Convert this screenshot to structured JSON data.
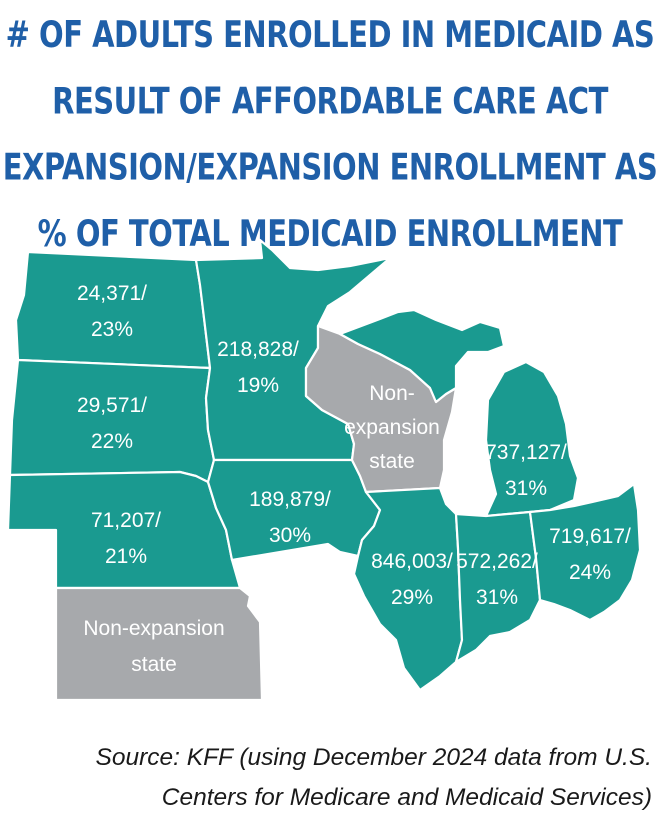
{
  "title_lines": [
    "# of adults enrolled in Medicaid as",
    "result of Affordable Care Act",
    "expansion/expansion enrollment as",
    "% of total Medicaid enrollment"
  ],
  "colors": {
    "title": "#1f5fa8",
    "expansion": "#1a9a90",
    "non_expansion": "#a7a9ac",
    "border": "#ffffff"
  },
  "states": {
    "north_dakota": {
      "count": "24,371/",
      "pct": "23%"
    },
    "south_dakota": {
      "count": "29,571/",
      "pct": "22%"
    },
    "nebraska": {
      "count": "71,207/",
      "pct": "21%"
    },
    "kansas": {
      "line1": "Non-expansion",
      "line2": "state"
    },
    "minnesota": {
      "count": "218,828/",
      "pct": "19%"
    },
    "iowa": {
      "count": "189,879/",
      "pct": "30%"
    },
    "wisconsin": {
      "line1": "Non-",
      "line2": "expansion",
      "line3": "state"
    },
    "michigan": {
      "count": "737,127/",
      "pct": "31%"
    },
    "illinois": {
      "count": "846,003/",
      "pct": "29%"
    },
    "indiana": {
      "count": "572,262/",
      "pct": "31%"
    },
    "ohio": {
      "count": "719,617/",
      "pct": "24%"
    }
  },
  "source_lines": [
    "Source: KFF (using December 2024 data from U.S.",
    "Centers for Medicare and Medicaid Services)"
  ]
}
